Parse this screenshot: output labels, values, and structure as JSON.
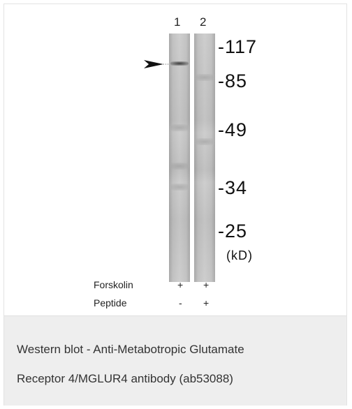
{
  "blot": {
    "lanes": [
      {
        "number": "1"
      },
      {
        "number": "2"
      }
    ],
    "markers": [
      "-117",
      "-85",
      "-49",
      "-34",
      "-25"
    ],
    "unit": "(kD)",
    "conditions": [
      {
        "label": "Forskolin",
        "lane1": "+",
        "lane2": "+"
      },
      {
        "label": "Peptide",
        "lane1": "-",
        "lane2": "+"
      }
    ]
  },
  "caption": {
    "line1": "Western blot - Anti-Metabotropic Glutamate",
    "line2": "Receptor 4/MGLUR4 antibody (ab53088)"
  }
}
